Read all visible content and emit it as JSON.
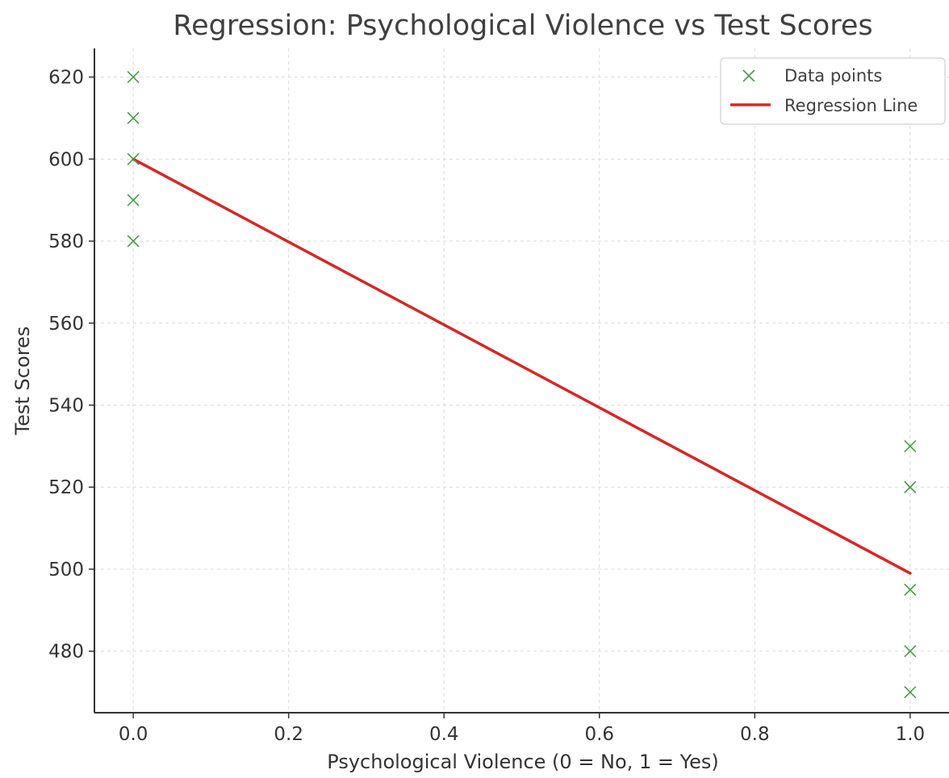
{
  "chart_data": {
    "type": "scatter",
    "title": "Regression: Psychological Violence vs Test Scores",
    "xlabel": "Psychological Violence (0 = No, 1 = Yes)",
    "ylabel": "Test Scores",
    "xlim": [
      -0.05,
      1.05
    ],
    "ylim": [
      465,
      627
    ],
    "xticks": [
      0.0,
      0.2,
      0.4,
      0.6,
      0.8,
      1.0
    ],
    "xtick_labels": [
      "0.0",
      "0.2",
      "0.4",
      "0.6",
      "0.8",
      "1.0"
    ],
    "yticks": [
      480,
      500,
      520,
      540,
      560,
      580,
      600,
      620
    ],
    "ytick_labels": [
      "480",
      "500",
      "520",
      "540",
      "560",
      "580",
      "600",
      "620"
    ],
    "grid": true,
    "legend_position": "top-right",
    "series": [
      {
        "name": "Data points",
        "kind": "scatter",
        "marker": "x",
        "color": "#4a9a4a",
        "points": [
          {
            "x": 0,
            "y": 620
          },
          {
            "x": 0,
            "y": 610
          },
          {
            "x": 0,
            "y": 600
          },
          {
            "x": 0,
            "y": 590
          },
          {
            "x": 0,
            "y": 580
          },
          {
            "x": 1,
            "y": 530
          },
          {
            "x": 1,
            "y": 520
          },
          {
            "x": 1,
            "y": 495
          },
          {
            "x": 1,
            "y": 480
          },
          {
            "x": 1,
            "y": 470
          }
        ]
      },
      {
        "name": "Regression Line",
        "kind": "line",
        "color": "#d62728",
        "points": [
          {
            "x": 0,
            "y": 600
          },
          {
            "x": 1,
            "y": 499
          }
        ]
      }
    ]
  }
}
